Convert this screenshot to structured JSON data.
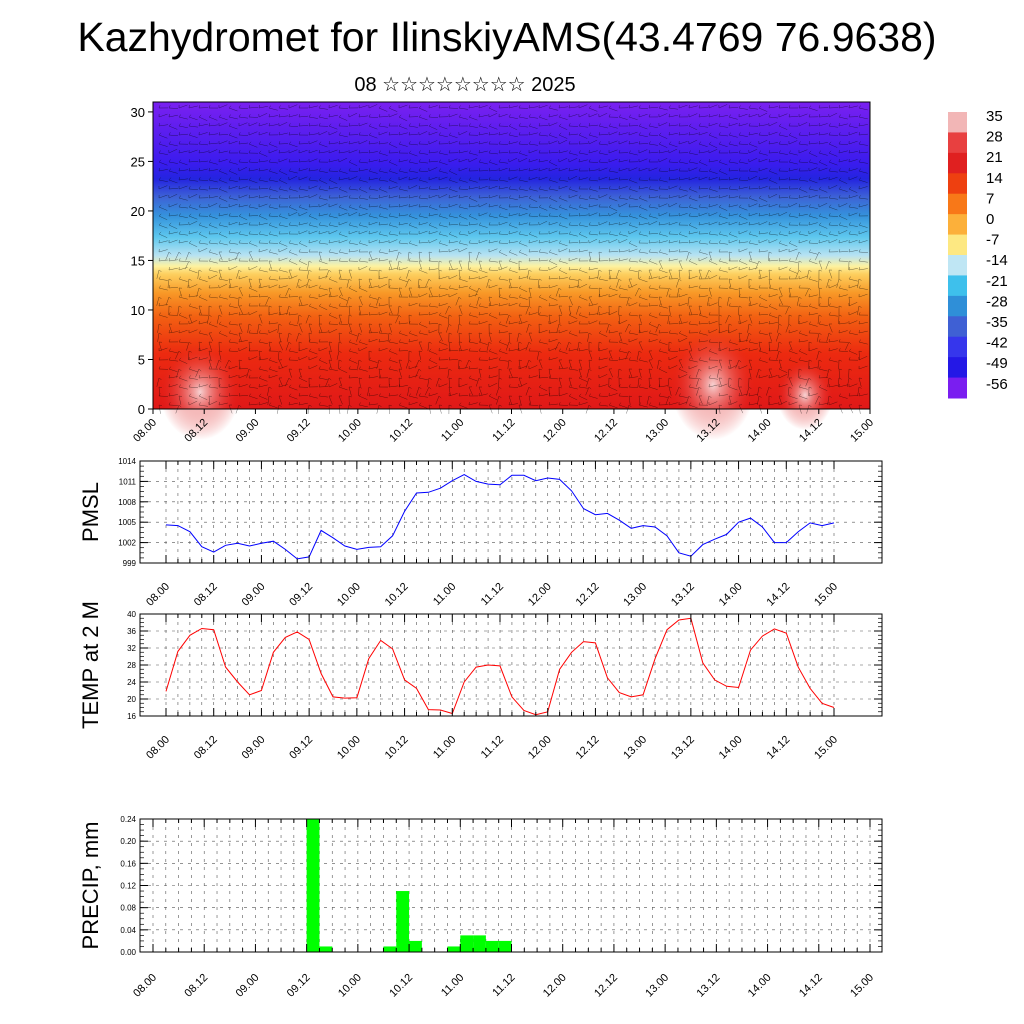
{
  "title": "Kazhydromet for IlinskiyAMS(43.4769 76.9638)",
  "subtitle": "08 ☆☆☆☆☆☆☆☆ 2025",
  "time_labels": [
    "08.00",
    "08.12",
    "09.00",
    "09.12",
    "10.00",
    "10.12",
    "11.00",
    "11.12",
    "12.00",
    "12.12",
    "13.00",
    "13.12",
    "14.00",
    "14.12",
    "15.00"
  ],
  "colors": {
    "pmsl": "#0000ff",
    "temp": "#ff0000",
    "precip": "#00ff00"
  },
  "chart_data": [
    {
      "type": "heatmap",
      "description_type": "cross-section temperature with wind barbs",
      "x_categories": [
        "08.00",
        "08.12",
        "09.00",
        "09.12",
        "10.00",
        "10.12",
        "11.00",
        "11.12",
        "12.00",
        "12.12",
        "13.00",
        "13.12",
        "14.00",
        "14.12",
        "15.00"
      ],
      "ylim": [
        0,
        31
      ],
      "yticks": [
        0,
        5,
        10,
        15,
        20,
        25,
        30
      ],
      "colorbar": {
        "labels": [
          "35",
          "28",
          "21",
          "14",
          "7",
          "0",
          "-7",
          "-14",
          "-21",
          "-28",
          "-35",
          "-42",
          "-49",
          "-56"
        ],
        "colors": [
          "#f2b6b6",
          "#e84040",
          "#e02020",
          "#ee4010",
          "#f87818",
          "#fcb03a",
          "#fde882",
          "#bfe6f4",
          "#3ec0ec",
          "#2f8fd8",
          "#3f60d4",
          "#3636ec",
          "#2418e6",
          "#7a1ef0"
        ]
      }
    },
    {
      "type": "line",
      "ylabel": "PMSL",
      "ylim": [
        999,
        1014
      ],
      "yticks": [
        999,
        1002,
        1005,
        1008,
        1011,
        1014
      ],
      "x_hours": [
        0,
        3,
        6,
        9,
        12,
        15,
        18,
        21,
        24,
        27,
        30,
        33,
        36,
        39,
        42,
        45,
        48,
        51,
        54,
        57,
        60,
        63,
        66,
        69,
        72,
        75,
        78,
        81,
        84,
        87,
        90,
        93,
        96,
        99,
        102,
        105,
        108,
        111,
        114,
        117,
        120,
        123,
        126,
        129,
        132,
        135,
        138,
        141,
        144,
        147,
        150,
        153,
        156,
        159,
        162,
        165,
        168
      ],
      "series": [
        {
          "values": [
            1004.6,
            1004.5,
            1003.6,
            1001.4,
            1000.6,
            1001.6,
            1001.9,
            1001.5,
            1001.9,
            1002.2,
            1001.0,
            999.6,
            999.9,
            1003.8,
            1002.7,
            1001.5,
            1001.0,
            1001.3,
            1001.4,
            1003.0,
            1006.6,
            1009.3,
            1009.4,
            1010.0,
            1011.1,
            1012.0,
            1011.0,
            1010.6,
            1010.5,
            1011.9,
            1011.9,
            1011.1,
            1011.5,
            1011.3,
            1009.6,
            1007.0,
            1006.1,
            1006.3,
            1005.3,
            1004.1,
            1004.5,
            1004.3,
            1003.0,
            1000.5,
            1000.0,
            1001.7,
            1002.5,
            1003.2,
            1005.0,
            1005.6,
            1004.3,
            1002.0,
            1002.0,
            1003.6,
            1004.9,
            1004.5,
            1004.9
          ]
        }
      ]
    },
    {
      "type": "line",
      "ylabel": "TEMP at 2 M",
      "ylim": [
        16,
        40
      ],
      "yticks": [
        16,
        20,
        24,
        28,
        32,
        36,
        40
      ],
      "x_hours": [
        0,
        3,
        6,
        9,
        12,
        15,
        18,
        21,
        24,
        27,
        30,
        33,
        36,
        39,
        42,
        45,
        48,
        51,
        54,
        57,
        60,
        63,
        66,
        69,
        72,
        75,
        78,
        81,
        84,
        87,
        90,
        93,
        96,
        99,
        102,
        105,
        108,
        111,
        114,
        117,
        120,
        123,
        126,
        129,
        132,
        135,
        138,
        141,
        144,
        147,
        150,
        153,
        156,
        159,
        162,
        165,
        168
      ],
      "series": [
        {
          "values": [
            21.8,
            31.2,
            35.0,
            36.6,
            36.3,
            27.5,
            24.0,
            21.0,
            22.0,
            31.0,
            34.5,
            35.8,
            34.0,
            26.0,
            20.5,
            20.2,
            20.3,
            29.5,
            33.8,
            31.8,
            24.5,
            22.5,
            17.5,
            17.4,
            16.6,
            24.0,
            27.5,
            28.0,
            27.8,
            20.5,
            17.3,
            16.3,
            17.0,
            27.0,
            31.0,
            33.5,
            33.2,
            25.0,
            21.5,
            20.5,
            21.0,
            29.5,
            36.3,
            38.6,
            39.0,
            28.5,
            24.5,
            23.0,
            22.7,
            31.5,
            34.8,
            36.5,
            35.5,
            27.5,
            22.5,
            19.0,
            18.0
          ]
        }
      ]
    },
    {
      "type": "bar",
      "ylabel": "PRECIP, mm",
      "ylim": [
        0,
        0.24
      ],
      "yticks": [
        "0.00",
        "0.04",
        "0.08",
        "0.12",
        "0.16",
        "0.20",
        "0.24"
      ],
      "x_hours_start": [
        36,
        39,
        54,
        57,
        60,
        69,
        72,
        75,
        78,
        81
      ],
      "values": [
        0.24,
        0.01,
        0.01,
        0.11,
        0.02,
        0.01,
        0.03,
        0.03,
        0.02,
        0.02
      ]
    }
  ]
}
